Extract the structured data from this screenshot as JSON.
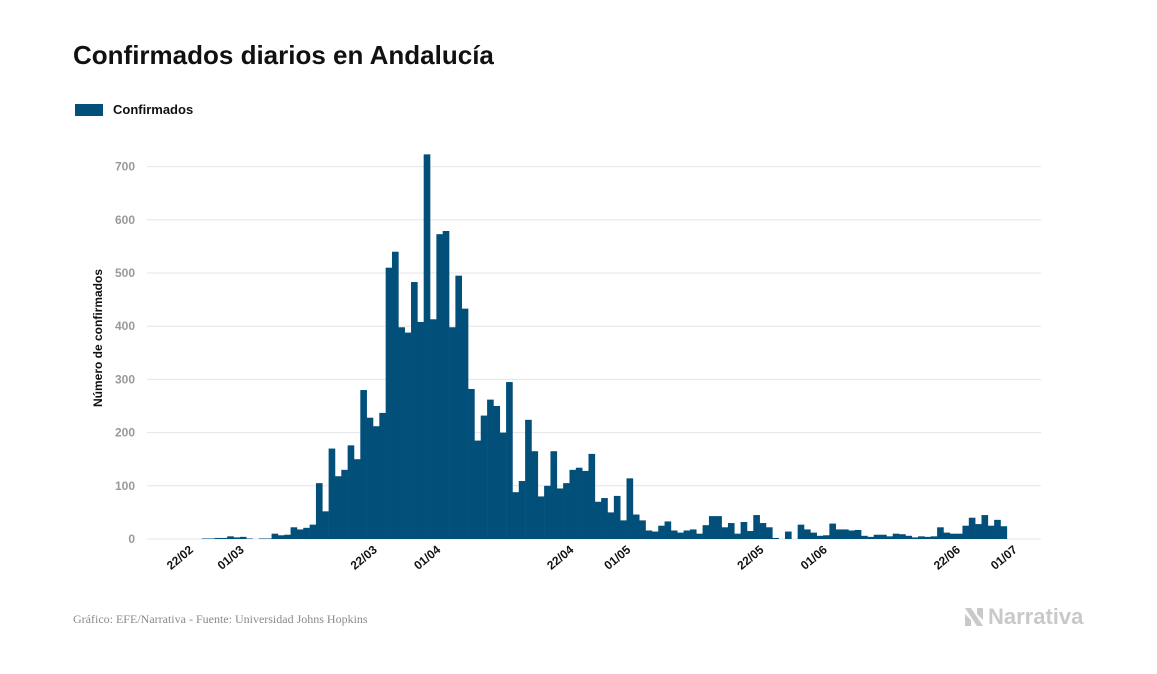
{
  "colors": {
    "bar": "#02507a",
    "grid": "#e5e5e5",
    "tick_text": "#999999",
    "axis_label": "#111111",
    "footer": "#8a8a8a",
    "brand": "#c9c9c9"
  },
  "legend": {
    "label": "Confirmados",
    "icon": "legend-swatch"
  },
  "footer": {
    "source": "Gráfico: EFE/Narrativa - Fuente: Universidad Johns Hopkins",
    "brand_name": "Narrativa",
    "brand_icon": "narrativa-logo-icon"
  },
  "chart_data": {
    "type": "bar",
    "title": "Confirmados diarios en Andalucía",
    "xlabel": "",
    "ylabel": "Número de confirmados",
    "ylim": [
      0,
      750
    ],
    "yticks": [
      0,
      100,
      200,
      300,
      400,
      500,
      600,
      700
    ],
    "grid": true,
    "legend_position": "top-left",
    "x_start": "2020-02-22",
    "x_end": "2020-07-01",
    "xticks": [
      {
        "date": "2020-02-22",
        "label": "22/02"
      },
      {
        "date": "2020-03-01",
        "label": "01/03"
      },
      {
        "date": "2020-03-22",
        "label": "22/03"
      },
      {
        "date": "2020-04-01",
        "label": "01/04"
      },
      {
        "date": "2020-04-22",
        "label": "22/04"
      },
      {
        "date": "2020-05-01",
        "label": "01/05"
      },
      {
        "date": "2020-05-22",
        "label": "22/05"
      },
      {
        "date": "2020-06-01",
        "label": "01/06"
      },
      {
        "date": "2020-06-22",
        "label": "22/06"
      },
      {
        "date": "2020-07-01",
        "label": "01/07"
      }
    ],
    "series": [
      {
        "name": "Confirmados",
        "points": [
          [
            "2020-02-25",
            1
          ],
          [
            "2020-02-26",
            1
          ],
          [
            "2020-02-27",
            2
          ],
          [
            "2020-02-28",
            2
          ],
          [
            "2020-02-29",
            5
          ],
          [
            "2020-03-01",
            3
          ],
          [
            "2020-03-02",
            4
          ],
          [
            "2020-03-03",
            1
          ],
          [
            "2020-03-05",
            1
          ],
          [
            "2020-03-06",
            1
          ],
          [
            "2020-03-07",
            10
          ],
          [
            "2020-03-08",
            7
          ],
          [
            "2020-03-09",
            8
          ],
          [
            "2020-03-10",
            22
          ],
          [
            "2020-03-11",
            18
          ],
          [
            "2020-03-12",
            21
          ],
          [
            "2020-03-13",
            27
          ],
          [
            "2020-03-14",
            105
          ],
          [
            "2020-03-15",
            52
          ],
          [
            "2020-03-16",
            170
          ],
          [
            "2020-03-17",
            118
          ],
          [
            "2020-03-18",
            130
          ],
          [
            "2020-03-19",
            176
          ],
          [
            "2020-03-20",
            150
          ],
          [
            "2020-03-21",
            280
          ],
          [
            "2020-03-22",
            228
          ],
          [
            "2020-03-23",
            212
          ],
          [
            "2020-03-24",
            237
          ],
          [
            "2020-03-25",
            510
          ],
          [
            "2020-03-26",
            540
          ],
          [
            "2020-03-27",
            398
          ],
          [
            "2020-03-28",
            388
          ],
          [
            "2020-03-29",
            483
          ],
          [
            "2020-03-30",
            408
          ],
          [
            "2020-03-31",
            723
          ],
          [
            "2020-04-01",
            413
          ],
          [
            "2020-04-02",
            573
          ],
          [
            "2020-04-03",
            579
          ],
          [
            "2020-04-04",
            398
          ],
          [
            "2020-04-05",
            495
          ],
          [
            "2020-04-06",
            433
          ],
          [
            "2020-04-07",
            282
          ],
          [
            "2020-04-08",
            185
          ],
          [
            "2020-04-09",
            232
          ],
          [
            "2020-04-10",
            262
          ],
          [
            "2020-04-11",
            250
          ],
          [
            "2020-04-12",
            200
          ],
          [
            "2020-04-13",
            295
          ],
          [
            "2020-04-14",
            88
          ],
          [
            "2020-04-15",
            109
          ],
          [
            "2020-04-16",
            224
          ],
          [
            "2020-04-17",
            165
          ],
          [
            "2020-04-18",
            80
          ],
          [
            "2020-04-19",
            100
          ],
          [
            "2020-04-20",
            165
          ],
          [
            "2020-04-21",
            95
          ],
          [
            "2020-04-22",
            105
          ],
          [
            "2020-04-23",
            130
          ],
          [
            "2020-04-24",
            134
          ],
          [
            "2020-04-25",
            128
          ],
          [
            "2020-04-26",
            160
          ],
          [
            "2020-04-27",
            70
          ],
          [
            "2020-04-28",
            77
          ],
          [
            "2020-04-29",
            50
          ],
          [
            "2020-04-30",
            81
          ],
          [
            "2020-05-01",
            35
          ],
          [
            "2020-05-02",
            114
          ],
          [
            "2020-05-03",
            46
          ],
          [
            "2020-05-04",
            35
          ],
          [
            "2020-05-05",
            16
          ],
          [
            "2020-05-06",
            14
          ],
          [
            "2020-05-07",
            25
          ],
          [
            "2020-05-08",
            33
          ],
          [
            "2020-05-09",
            16
          ],
          [
            "2020-05-10",
            12
          ],
          [
            "2020-05-11",
            16
          ],
          [
            "2020-05-12",
            18
          ],
          [
            "2020-05-13",
            10
          ],
          [
            "2020-05-14",
            26
          ],
          [
            "2020-05-15",
            43
          ],
          [
            "2020-05-16",
            43
          ],
          [
            "2020-05-17",
            22
          ],
          [
            "2020-05-18",
            30
          ],
          [
            "2020-05-19",
            10
          ],
          [
            "2020-05-20",
            32
          ],
          [
            "2020-05-21",
            15
          ],
          [
            "2020-05-22",
            45
          ],
          [
            "2020-05-23",
            30
          ],
          [
            "2020-05-24",
            22
          ],
          [
            "2020-05-25",
            2
          ],
          [
            "2020-05-27",
            14
          ],
          [
            "2020-05-29",
            27
          ],
          [
            "2020-05-30",
            18
          ],
          [
            "2020-05-31",
            12
          ],
          [
            "2020-06-01",
            6
          ],
          [
            "2020-06-02",
            7
          ],
          [
            "2020-06-03",
            29
          ],
          [
            "2020-06-04",
            18
          ],
          [
            "2020-06-05",
            18
          ],
          [
            "2020-06-06",
            16
          ],
          [
            "2020-06-07",
            17
          ],
          [
            "2020-06-08",
            6
          ],
          [
            "2020-06-09",
            4
          ],
          [
            "2020-06-10",
            8
          ],
          [
            "2020-06-11",
            8
          ],
          [
            "2020-06-12",
            5
          ],
          [
            "2020-06-13",
            10
          ],
          [
            "2020-06-14",
            9
          ],
          [
            "2020-06-15",
            6
          ],
          [
            "2020-06-16",
            3
          ],
          [
            "2020-06-17",
            5
          ],
          [
            "2020-06-18",
            4
          ],
          [
            "2020-06-19",
            5
          ],
          [
            "2020-06-20",
            22
          ],
          [
            "2020-06-21",
            12
          ],
          [
            "2020-06-22",
            10
          ],
          [
            "2020-06-23",
            10
          ],
          [
            "2020-06-24",
            25
          ],
          [
            "2020-06-25",
            40
          ],
          [
            "2020-06-26",
            28
          ],
          [
            "2020-06-27",
            45
          ],
          [
            "2020-06-28",
            25
          ],
          [
            "2020-06-29",
            36
          ],
          [
            "2020-06-30",
            24
          ]
        ]
      }
    ]
  }
}
